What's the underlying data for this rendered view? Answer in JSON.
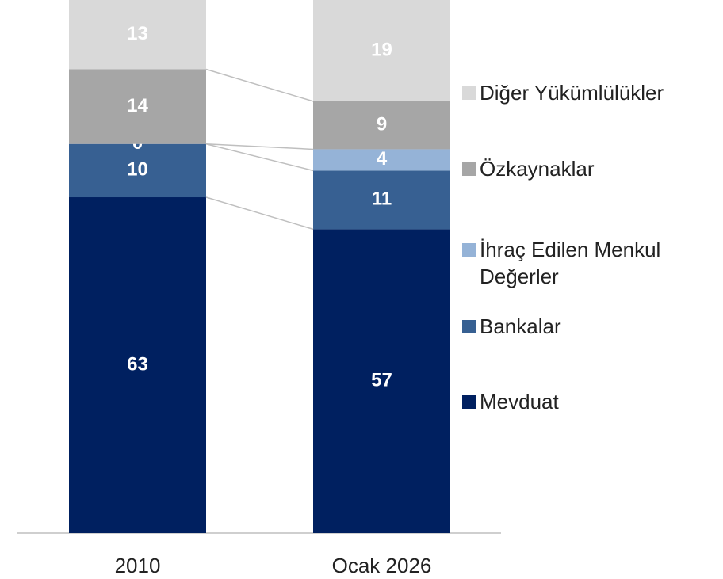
{
  "chart_data": {
    "type": "stacked_bar",
    "categories": [
      "2010",
      "Ocak 2026"
    ],
    "series": [
      {
        "name": "Mevduat",
        "color": "#002060",
        "values": [
          63,
          57
        ]
      },
      {
        "name": "Bankalar",
        "color": "#376092",
        "values": [
          10,
          11
        ]
      },
      {
        "name": "İhraç Edilen Menkul Değerler",
        "color": "#95b3d7",
        "values": [
          0,
          4
        ]
      },
      {
        "name": "Özkaynaklar",
        "color": "#a6a6a6",
        "values": [
          14,
          9
        ]
      },
      {
        "name": "Diğer Yükümlülükler",
        "color": "#d9d9d9",
        "values": [
          13,
          19
        ]
      }
    ],
    "ylim": [
      0,
      100
    ]
  }
}
